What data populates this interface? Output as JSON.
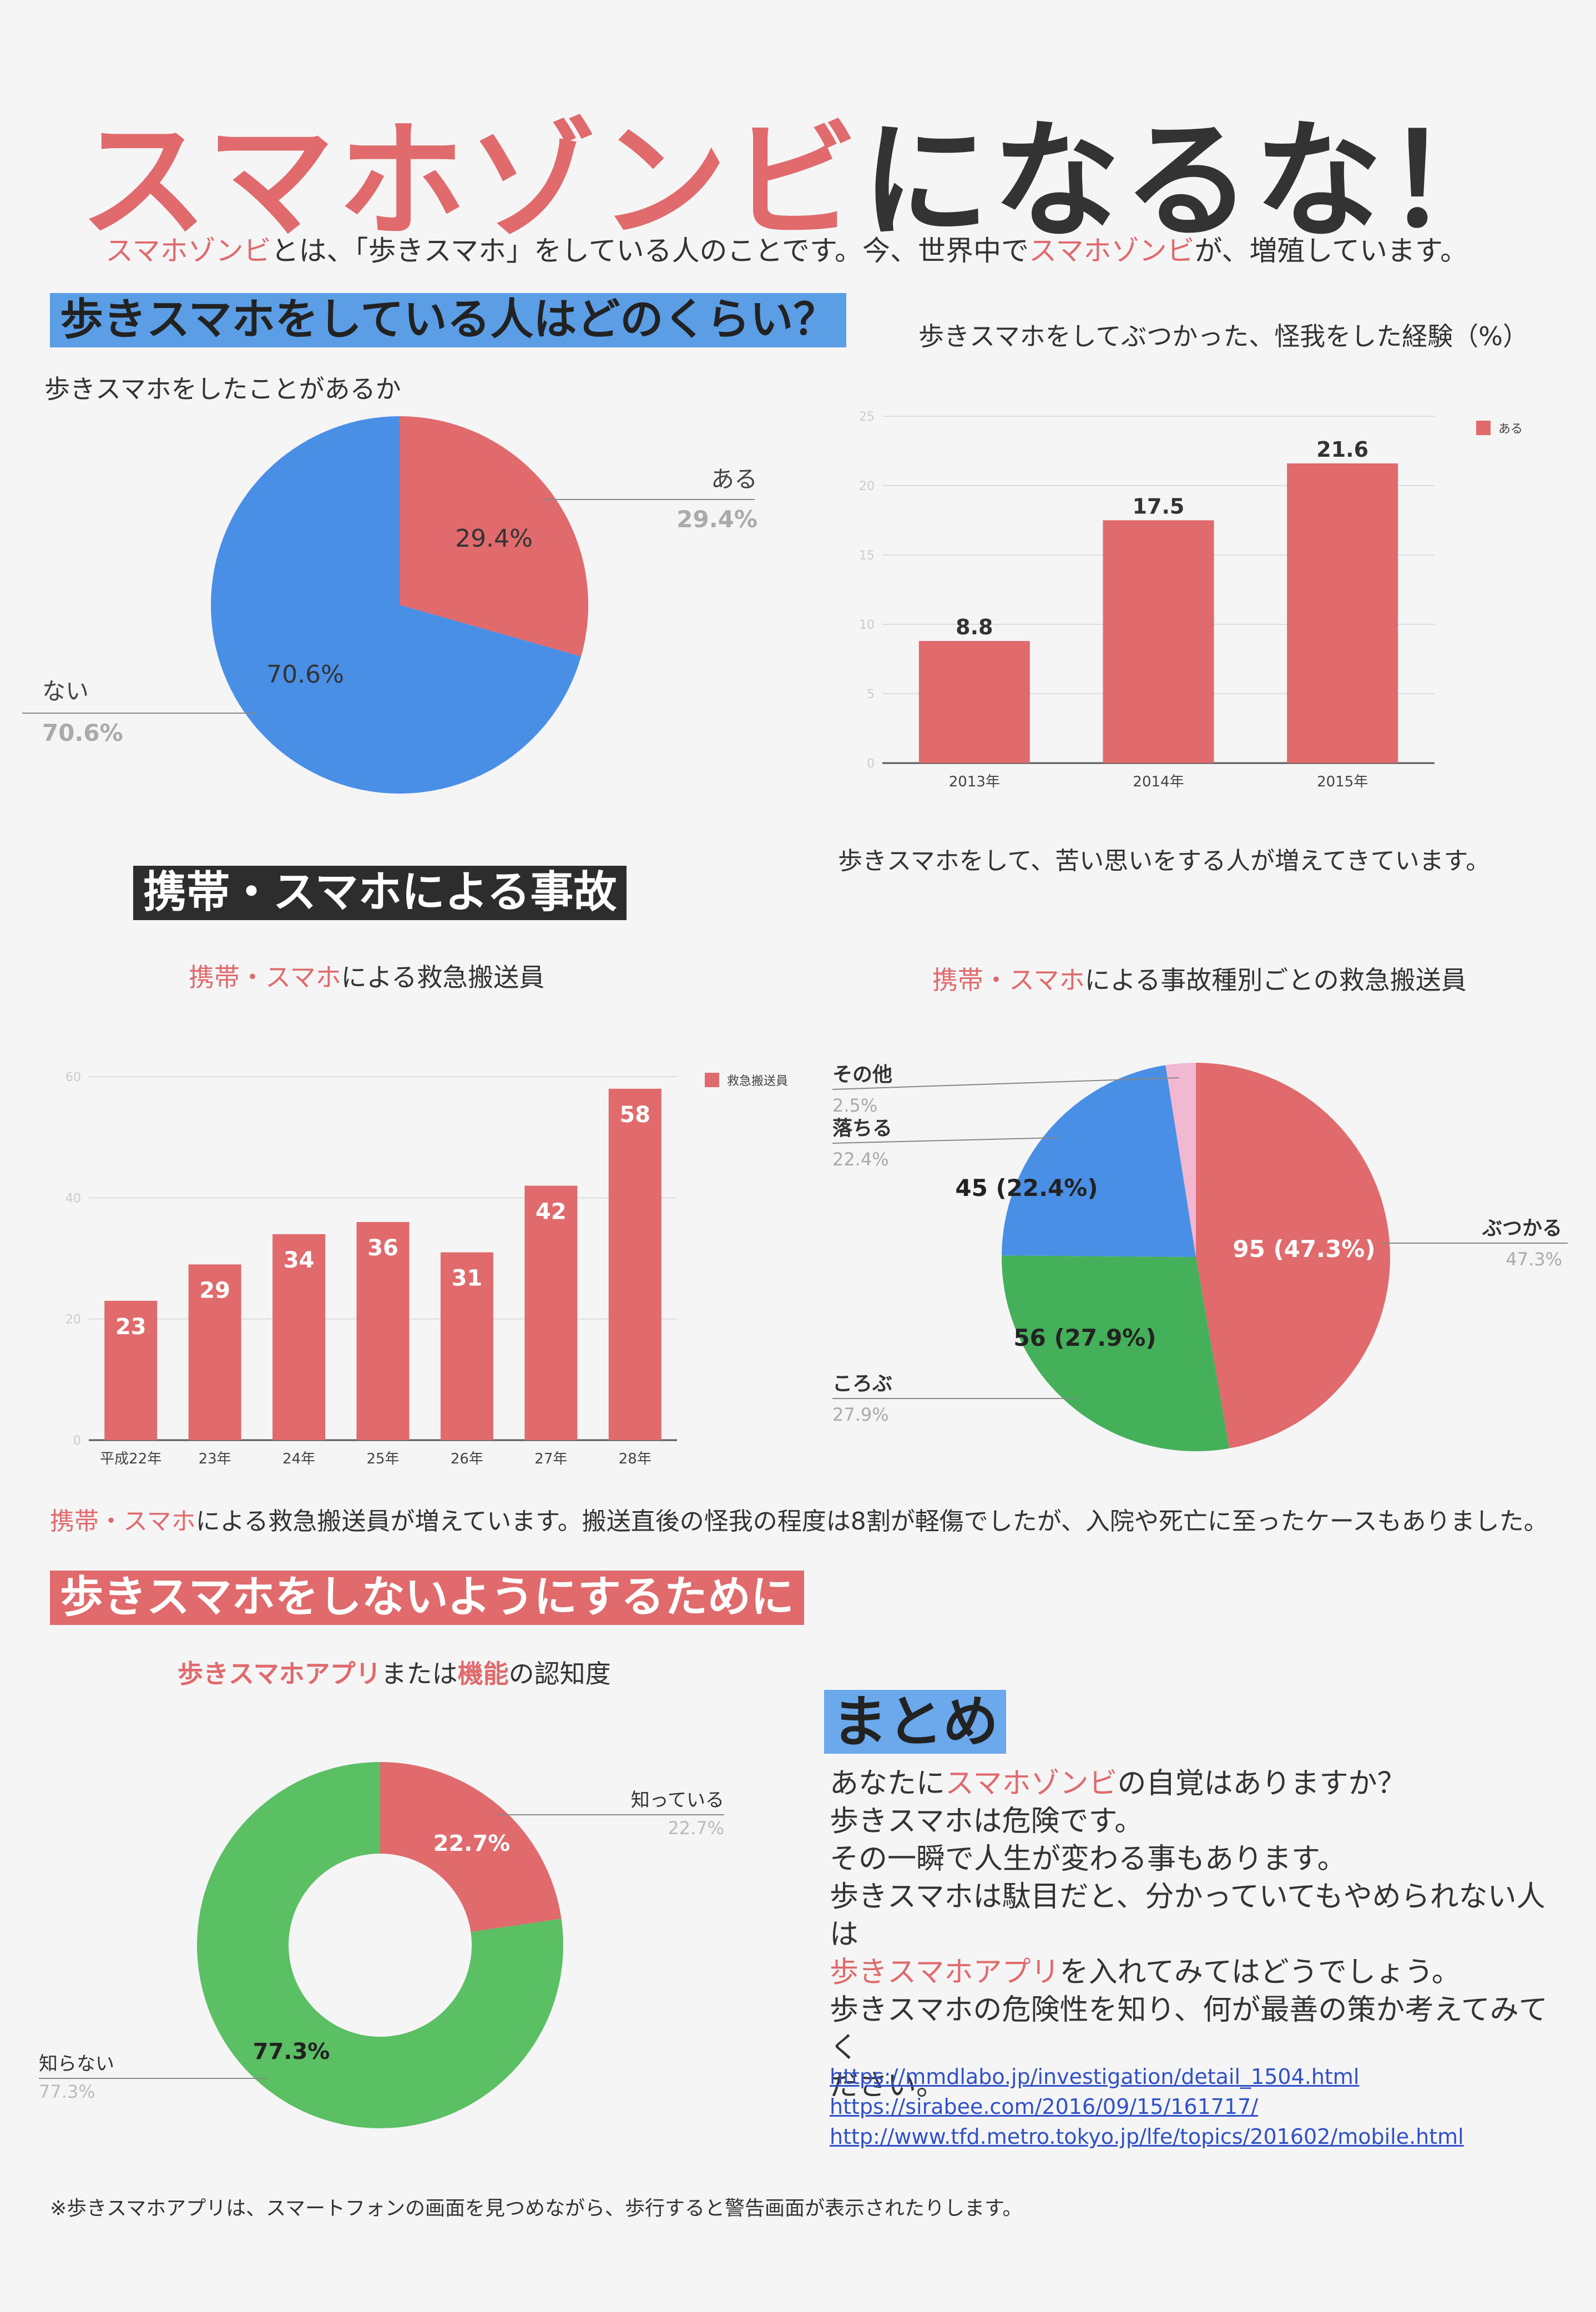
{
  "header": {
    "title_red": "スマホゾンビ",
    "title_dark": "になるな！",
    "subtitle_parts": [
      "スマホゾンビ",
      "とは、「歩きスマホ」をしている人のことです。今、世界中で",
      "スマホゾンビ",
      "が、増殖しています。"
    ]
  },
  "section1": {
    "heading": "歩きスマホをしている人はどのくらい？",
    "pie_title": "歩きスマホをしたことがあるか",
    "bar_title": "歩きスマホをしてぶつかった、怪我をした経験（%）",
    "bar_note": "歩きスマホをして、苦い思いをする人が増えてきています。"
  },
  "section2": {
    "heading": "携帯・スマホによる事故",
    "bar_title_red": "携帯・スマホ",
    "bar_title_rest": "による救急搬送員",
    "pie_title_red": "携帯・スマホ",
    "pie_title_rest": "による事故種別ごとの救急搬送員",
    "note_red": "携帯・スマホ",
    "note_rest": "による救急搬送員が増えています。搬送直後の怪我の程度は8割が軽傷でしたが、入院や死亡に至ったケースもありました。"
  },
  "section3": {
    "heading": "歩きスマホをしないようにするために",
    "donut_title_parts": [
      "歩きスマホアプリ",
      "または",
      "機能",
      "の認知度"
    ]
  },
  "summary": {
    "heading": "まとめ",
    "line1_a": "あなたに",
    "line1_red": "スマホゾンビ",
    "line1_b": "の自覚はありますか？",
    "line2": "歩きスマホは危険です。",
    "line3": "その一瞬で人生が変わる事もあります。",
    "line4": "歩きスマホは駄目だと、分かっていてもやめられない人は",
    "line5_red": "歩きスマホアプリ",
    "line5_b": "を入れてみてはどうでしょう。",
    "line6": "歩きスマホの危険性を知り、何が最善の策か考えてみてく",
    "line7": "ださい。",
    "links": [
      "https://mmdlabo.jp/investigation/detail_1504.html",
      "https://sirabee.com/2016/09/15/161717/",
      "http://www.tfd.metro.tokyo.jp/lfe/topics/201602/mobile.html"
    ]
  },
  "footnote": "※歩きスマホアプリは、スマートフォンの画面を見つめながら、歩行すると警告画面が表示されたりします。",
  "colors": {
    "red": "#e06a6c",
    "blue": "#4a8fe6",
    "green": "#45b05a",
    "pink": "#f2b8d2",
    "dark": "#333333"
  },
  "chart_data": [
    {
      "type": "pie",
      "labels": [
        "ある",
        "ない"
      ],
      "values": [
        29.4,
        70.6
      ],
      "value_labels": [
        "29.4%",
        "70.6%"
      ],
      "colors": [
        "#e06a6c",
        "#4a8fe6"
      ]
    },
    {
      "type": "bar",
      "categories": [
        "2013年",
        "2014年",
        "2015年"
      ],
      "series": [
        {
          "name": "ある",
          "values": [
            8.8,
            17.5,
            21.6
          ]
        }
      ],
      "yticks": [
        "0",
        "5",
        "10",
        "15",
        "20",
        "25"
      ],
      "ylim": [
        0,
        25
      ],
      "grid": true,
      "legend": "top-right"
    },
    {
      "type": "bar",
      "categories": [
        "平成22年",
        "23年",
        "24年",
        "25年",
        "26年",
        "27年",
        "28年"
      ],
      "series": [
        {
          "name": "救急搬送員",
          "values": [
            23,
            29,
            34,
            36,
            31,
            42,
            58
          ]
        }
      ],
      "yticks": [
        "0",
        "20",
        "40",
        "60"
      ],
      "ylim": [
        0,
        60
      ],
      "grid": true,
      "legend": "top-right"
    },
    {
      "type": "pie",
      "labels": [
        "ぶつかる",
        "ころぶ",
        "落ちる",
        "その他"
      ],
      "values": [
        47.3,
        27.9,
        22.4,
        2.5
      ],
      "counts": [
        95,
        56,
        45,
        null
      ],
      "inner_labels": [
        "95 (47.3%)",
        "56 (27.9%)",
        "45 (22.4%)",
        ""
      ],
      "outer_labels": [
        "47.3%",
        "27.9%",
        "22.4%",
        "2.5%"
      ],
      "colors": [
        "#e06a6c",
        "#45b05a",
        "#4a8fe6",
        "#f2b8d2"
      ]
    },
    {
      "type": "pie",
      "donut": true,
      "labels": [
        "知っている",
        "知らない"
      ],
      "values": [
        22.7,
        77.3
      ],
      "value_labels": [
        "22.7%",
        "77.3%"
      ],
      "colors": [
        "#e06a6c",
        "#5bbf63"
      ]
    }
  ]
}
